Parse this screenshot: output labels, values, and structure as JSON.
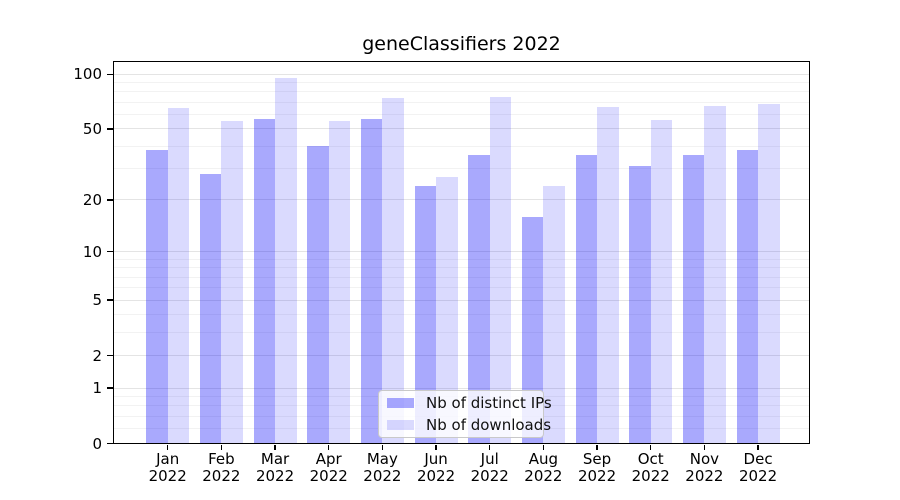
{
  "title": "geneClassifiers 2022",
  "colors": {
    "ips_bar": "rgba(10,10,250,0.35)",
    "downloads_bar": "rgba(10,10,250,0.15)",
    "grid_major": "#e4e4e4",
    "grid_minor": "#f2f2f2",
    "spine": "#000000",
    "legend_border": "#c9c9c9",
    "text": "#000000"
  },
  "legend": {
    "items": [
      {
        "label": "Nb of distinct IPs",
        "series": "ips"
      },
      {
        "label": "Nb of downloads",
        "series": "downloads"
      }
    ]
  },
  "y_axis": {
    "scale": "log1p",
    "major_ticks": [
      100,
      50,
      20,
      10,
      5,
      2,
      1,
      0
    ],
    "major_tick_labels": [
      "100",
      "50",
      "20",
      "10",
      "5",
      "2",
      "1",
      "0"
    ],
    "minor_ticks": [
      0.2,
      0.4,
      0.6,
      0.8,
      3,
      4,
      6,
      7,
      8,
      9,
      30,
      40,
      60,
      70,
      80,
      90
    ]
  },
  "x_axis": {
    "months": [
      "Jan",
      "Feb",
      "Mar",
      "Apr",
      "May",
      "Jun",
      "Jul",
      "Aug",
      "Sep",
      "Oct",
      "Nov",
      "Dec"
    ],
    "year": "2022"
  },
  "chart_data": {
    "type": "bar",
    "title": "geneClassifiers 2022",
    "categories": [
      "Jan 2022",
      "Feb 2022",
      "Mar 2022",
      "Apr 2022",
      "May 2022",
      "Jun 2022",
      "Jul 2022",
      "Aug 2022",
      "Sep 2022",
      "Oct 2022",
      "Nov 2022",
      "Dec 2022"
    ],
    "series": [
      {
        "name": "Nb of distinct IPs",
        "key": "ips",
        "values": [
          38,
          28,
          57,
          40,
          57,
          24,
          36,
          16,
          36,
          31,
          36,
          38
        ]
      },
      {
        "name": "Nb of downloads",
        "key": "downloads",
        "values": [
          65,
          55,
          95,
          55,
          74,
          27,
          75,
          24,
          66,
          56,
          67,
          69
        ]
      }
    ],
    "xlabel": "",
    "ylabel": "",
    "yscale": "symlog (log(1+y))",
    "ylim": [
      0,
      117
    ],
    "grid": "both",
    "legend_position": "lower center"
  }
}
